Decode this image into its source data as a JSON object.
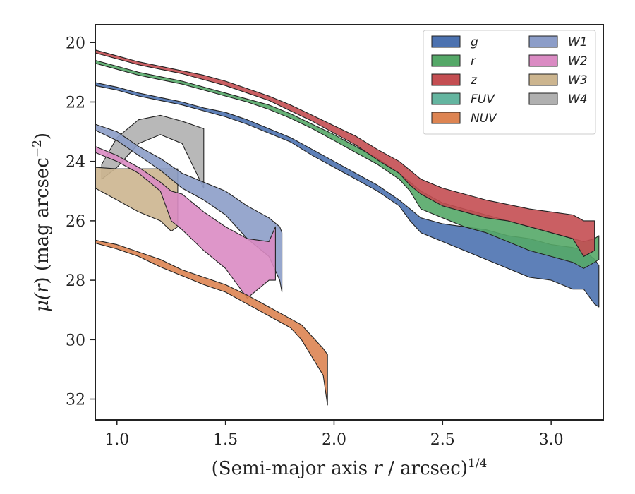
{
  "chart_data": {
    "type": "area",
    "xlabel": "(Semi-major axis r / arcsec)^1/4",
    "xlabel_parts": {
      "pre": "(Semi-major axis ",
      "var": "r",
      "post": " / arcsec)",
      "sup": "1/4"
    },
    "ylabel": "μ(r) (mag arcsec^-2)",
    "ylabel_parts": {
      "mu": "μ(",
      "var": "r",
      "mid": ") (mag arcsec",
      "sup": "−2",
      "post": ")"
    },
    "xlim": [
      0.9,
      3.24
    ],
    "ylim": [
      32.7,
      19.4
    ],
    "y_inverted": true,
    "x_ticks": [
      "1.0",
      "1.5",
      "2.0",
      "2.5",
      "3.0"
    ],
    "y_ticks": [
      "20",
      "22",
      "24",
      "26",
      "28",
      "30",
      "32"
    ],
    "grid": false,
    "legend": {
      "placement": "top-right",
      "columns": 2
    },
    "series": [
      {
        "name": "g",
        "color": "#4c72b0",
        "upper": [
          [
            0.9,
            21.35
          ],
          [
            1.0,
            21.5
          ],
          [
            1.1,
            21.7
          ],
          [
            1.2,
            21.85
          ],
          [
            1.3,
            22.0
          ],
          [
            1.4,
            22.2
          ],
          [
            1.5,
            22.35
          ],
          [
            1.6,
            22.6
          ],
          [
            1.7,
            22.9
          ],
          [
            1.8,
            23.2
          ],
          [
            1.9,
            23.6
          ],
          [
            2.0,
            24.0
          ],
          [
            2.1,
            24.4
          ],
          [
            2.2,
            24.8
          ],
          [
            2.3,
            25.3
          ],
          [
            2.35,
            25.6
          ],
          [
            2.4,
            25.9
          ],
          [
            2.5,
            26.1
          ],
          [
            2.6,
            26.2
          ],
          [
            2.7,
            26.3
          ],
          [
            2.8,
            26.5
          ],
          [
            2.9,
            26.6
          ],
          [
            3.0,
            26.8
          ],
          [
            3.1,
            26.9
          ],
          [
            3.15,
            27.0
          ],
          [
            3.2,
            27.3
          ],
          [
            3.22,
            27.5
          ]
        ],
        "lower": [
          [
            0.9,
            21.45
          ],
          [
            1.0,
            21.6
          ],
          [
            1.1,
            21.8
          ],
          [
            1.2,
            21.95
          ],
          [
            1.3,
            22.1
          ],
          [
            1.4,
            22.3
          ],
          [
            1.5,
            22.5
          ],
          [
            1.6,
            22.75
          ],
          [
            1.7,
            23.05
          ],
          [
            1.8,
            23.35
          ],
          [
            1.9,
            23.8
          ],
          [
            2.0,
            24.2
          ],
          [
            2.1,
            24.6
          ],
          [
            2.2,
            25.0
          ],
          [
            2.3,
            25.5
          ],
          [
            2.35,
            26.0
          ],
          [
            2.4,
            26.4
          ],
          [
            2.5,
            26.7
          ],
          [
            2.6,
            27.0
          ],
          [
            2.7,
            27.3
          ],
          [
            2.8,
            27.6
          ],
          [
            2.9,
            27.9
          ],
          [
            3.0,
            28.0
          ],
          [
            3.1,
            28.3
          ],
          [
            3.15,
            28.3
          ],
          [
            3.2,
            28.8
          ],
          [
            3.22,
            28.9
          ]
        ]
      },
      {
        "name": "r",
        "color": "#55a868",
        "upper": [
          [
            0.9,
            20.6
          ],
          [
            1.0,
            20.8
          ],
          [
            1.1,
            21.0
          ],
          [
            1.2,
            21.15
          ],
          [
            1.3,
            21.3
          ],
          [
            1.4,
            21.5
          ],
          [
            1.5,
            21.7
          ],
          [
            1.6,
            21.9
          ],
          [
            1.7,
            22.1
          ],
          [
            1.8,
            22.4
          ],
          [
            1.9,
            22.75
          ],
          [
            2.0,
            23.1
          ],
          [
            2.1,
            23.5
          ],
          [
            2.2,
            23.9
          ],
          [
            2.3,
            24.4
          ],
          [
            2.35,
            24.7
          ],
          [
            2.4,
            25.0
          ],
          [
            2.5,
            25.4
          ],
          [
            2.6,
            25.6
          ],
          [
            2.7,
            25.8
          ],
          [
            2.8,
            26.0
          ],
          [
            2.9,
            26.2
          ],
          [
            3.0,
            26.4
          ],
          [
            3.1,
            26.6
          ],
          [
            3.15,
            26.7
          ],
          [
            3.2,
            26.6
          ],
          [
            3.22,
            26.5
          ]
        ],
        "lower": [
          [
            0.9,
            20.7
          ],
          [
            1.0,
            20.9
          ],
          [
            1.1,
            21.1
          ],
          [
            1.2,
            21.25
          ],
          [
            1.3,
            21.4
          ],
          [
            1.4,
            21.6
          ],
          [
            1.5,
            21.8
          ],
          [
            1.6,
            22.0
          ],
          [
            1.7,
            22.25
          ],
          [
            1.8,
            22.55
          ],
          [
            1.9,
            22.9
          ],
          [
            2.0,
            23.3
          ],
          [
            2.1,
            23.7
          ],
          [
            2.2,
            24.1
          ],
          [
            2.3,
            24.6
          ],
          [
            2.35,
            25.0
          ],
          [
            2.4,
            25.6
          ],
          [
            2.5,
            25.9
          ],
          [
            2.6,
            26.2
          ],
          [
            2.7,
            26.4
          ],
          [
            2.8,
            26.7
          ],
          [
            2.9,
            27.0
          ],
          [
            3.0,
            27.2
          ],
          [
            3.1,
            27.4
          ],
          [
            3.15,
            27.6
          ],
          [
            3.2,
            27.4
          ],
          [
            3.22,
            27.3
          ]
        ]
      },
      {
        "name": "z",
        "color": "#c44e52",
        "upper": [
          [
            0.9,
            20.25
          ],
          [
            1.0,
            20.45
          ],
          [
            1.1,
            20.65
          ],
          [
            1.2,
            20.8
          ],
          [
            1.3,
            20.95
          ],
          [
            1.4,
            21.1
          ],
          [
            1.5,
            21.3
          ],
          [
            1.6,
            21.55
          ],
          [
            1.7,
            21.8
          ],
          [
            1.8,
            22.1
          ],
          [
            1.9,
            22.45
          ],
          [
            2.0,
            22.8
          ],
          [
            2.1,
            23.15
          ],
          [
            2.2,
            23.6
          ],
          [
            2.3,
            24.0
          ],
          [
            2.35,
            24.3
          ],
          [
            2.4,
            24.6
          ],
          [
            2.5,
            24.9
          ],
          [
            2.6,
            25.1
          ],
          [
            2.7,
            25.3
          ],
          [
            2.8,
            25.45
          ],
          [
            2.9,
            25.6
          ],
          [
            3.0,
            25.7
          ],
          [
            3.1,
            25.8
          ],
          [
            3.15,
            26.0
          ],
          [
            3.2,
            26.0
          ]
        ],
        "lower": [
          [
            0.9,
            20.35
          ],
          [
            1.0,
            20.55
          ],
          [
            1.1,
            20.75
          ],
          [
            1.2,
            20.9
          ],
          [
            1.3,
            21.05
          ],
          [
            1.4,
            21.25
          ],
          [
            1.5,
            21.45
          ],
          [
            1.6,
            21.7
          ],
          [
            1.7,
            21.95
          ],
          [
            1.8,
            22.3
          ],
          [
            1.9,
            22.65
          ],
          [
            2.0,
            23.05
          ],
          [
            2.1,
            23.45
          ],
          [
            2.2,
            23.95
          ],
          [
            2.3,
            24.4
          ],
          [
            2.35,
            24.8
          ],
          [
            2.4,
            25.1
          ],
          [
            2.5,
            25.5
          ],
          [
            2.6,
            25.7
          ],
          [
            2.7,
            25.9
          ],
          [
            2.8,
            26.0
          ],
          [
            2.9,
            26.2
          ],
          [
            3.0,
            26.4
          ],
          [
            3.1,
            26.6
          ],
          [
            3.15,
            27.2
          ],
          [
            3.2,
            27.0
          ]
        ]
      },
      {
        "name": "FUV",
        "color": "#64b5a0",
        "upper": [],
        "lower": []
      },
      {
        "name": "NUV",
        "color": "#dd8452",
        "upper": [
          [
            0.9,
            26.65
          ],
          [
            1.0,
            26.8
          ],
          [
            1.1,
            27.05
          ],
          [
            1.2,
            27.3
          ],
          [
            1.3,
            27.65
          ],
          [
            1.4,
            27.9
          ],
          [
            1.5,
            28.15
          ],
          [
            1.6,
            28.5
          ],
          [
            1.7,
            28.9
          ],
          [
            1.8,
            29.3
          ],
          [
            1.85,
            29.5
          ],
          [
            1.9,
            29.9
          ],
          [
            1.95,
            30.3
          ],
          [
            1.97,
            30.5
          ]
        ],
        "lower": [
          [
            0.9,
            26.75
          ],
          [
            1.0,
            26.95
          ],
          [
            1.1,
            27.2
          ],
          [
            1.2,
            27.55
          ],
          [
            1.3,
            27.85
          ],
          [
            1.4,
            28.15
          ],
          [
            1.5,
            28.4
          ],
          [
            1.6,
            28.8
          ],
          [
            1.7,
            29.2
          ],
          [
            1.8,
            29.6
          ],
          [
            1.85,
            30.0
          ],
          [
            1.9,
            30.6
          ],
          [
            1.95,
            31.2
          ],
          [
            1.97,
            32.2
          ]
        ]
      },
      {
        "name": "W1",
        "color": "#8c9dc8",
        "upper": [
          [
            0.9,
            22.75
          ],
          [
            1.0,
            23.0
          ],
          [
            1.1,
            23.5
          ],
          [
            1.2,
            23.9
          ],
          [
            1.3,
            24.4
          ],
          [
            1.4,
            24.7
          ],
          [
            1.5,
            25.0
          ],
          [
            1.6,
            25.5
          ],
          [
            1.7,
            25.9
          ],
          [
            1.75,
            26.2
          ],
          [
            1.76,
            26.4
          ]
        ],
        "lower": [
          [
            0.9,
            22.95
          ],
          [
            1.0,
            23.3
          ],
          [
            1.1,
            23.8
          ],
          [
            1.2,
            24.3
          ],
          [
            1.3,
            24.9
          ],
          [
            1.4,
            25.3
          ],
          [
            1.5,
            25.8
          ],
          [
            1.6,
            26.6
          ],
          [
            1.7,
            27.2
          ],
          [
            1.75,
            28.0
          ],
          [
            1.76,
            28.4
          ]
        ]
      },
      {
        "name": "W2",
        "color": "#da8bc3",
        "upper": [
          [
            0.9,
            23.5
          ],
          [
            1.0,
            23.8
          ],
          [
            1.1,
            24.2
          ],
          [
            1.2,
            24.7
          ],
          [
            1.25,
            25.0
          ],
          [
            1.3,
            25.1
          ],
          [
            1.4,
            25.7
          ],
          [
            1.5,
            26.2
          ],
          [
            1.6,
            26.6
          ],
          [
            1.7,
            26.7
          ],
          [
            1.73,
            26.2
          ]
        ],
        "lower": [
          [
            0.9,
            23.7
          ],
          [
            1.0,
            24.0
          ],
          [
            1.1,
            24.4
          ],
          [
            1.2,
            25.0
          ],
          [
            1.25,
            26.0
          ],
          [
            1.3,
            26.3
          ],
          [
            1.4,
            27.0
          ],
          [
            1.5,
            27.6
          ],
          [
            1.6,
            28.6
          ],
          [
            1.7,
            28.0
          ],
          [
            1.73,
            28.0
          ]
        ]
      },
      {
        "name": "W3",
        "color": "#ccb58f",
        "upper": [
          [
            0.9,
            24.2
          ],
          [
            1.0,
            24.25
          ],
          [
            1.1,
            24.25
          ],
          [
            1.2,
            24.25
          ],
          [
            1.28,
            24.25
          ]
        ],
        "lower": [
          [
            0.9,
            24.9
          ],
          [
            1.0,
            25.3
          ],
          [
            1.1,
            25.7
          ],
          [
            1.2,
            26.0
          ],
          [
            1.25,
            26.35
          ],
          [
            1.28,
            26.2
          ]
        ]
      },
      {
        "name": "W4",
        "color": "#b0b0b0",
        "upper": [
          [
            0.93,
            24.1
          ],
          [
            1.0,
            23.2
          ],
          [
            1.1,
            22.6
          ],
          [
            1.2,
            22.45
          ],
          [
            1.3,
            22.65
          ],
          [
            1.4,
            22.9
          ]
        ],
        "lower": [
          [
            0.93,
            24.6
          ],
          [
            1.0,
            24.2
          ],
          [
            1.1,
            23.4
          ],
          [
            1.2,
            23.1
          ],
          [
            1.3,
            23.4
          ],
          [
            1.4,
            24.9
          ]
        ]
      }
    ]
  }
}
